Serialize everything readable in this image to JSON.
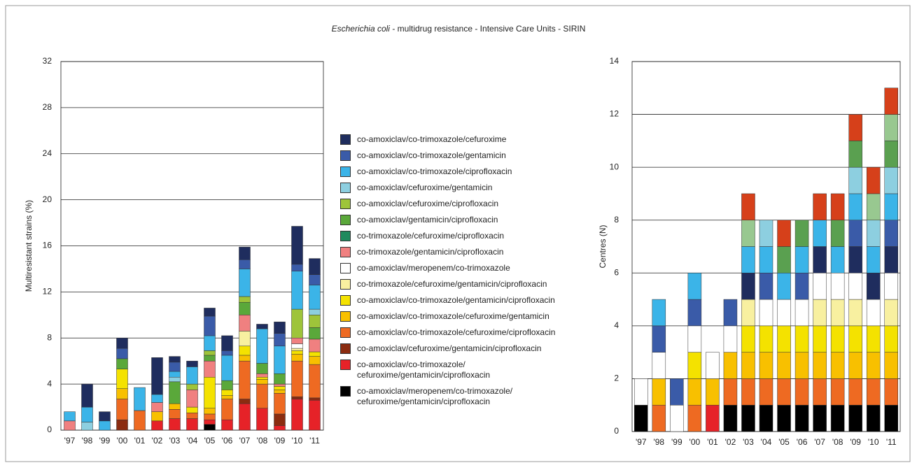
{
  "title": {
    "species": "Escherichia coli",
    "rest": "- multidrug resistance - Intensive Care Units - SIRIN"
  },
  "chart_data": [
    {
      "type": "stacked-bar",
      "y_label": "Multiresistant strains (%)",
      "categories": [
        "'97",
        "'98",
        "'99",
        "'00",
        "'01",
        "'02",
        "'03",
        "'04",
        "'05",
        "'06",
        "'07",
        "'08",
        "'09",
        "'10",
        "'11"
      ],
      "ylim": [
        0,
        32
      ],
      "yticks": [
        0,
        4,
        8,
        12,
        16,
        20,
        24,
        28,
        32
      ],
      "grid": true,
      "series": [
        {
          "name": "co-amoxiclav/meropenem/co-trimoxazole/\ncefuroxime/gentamicin/ciprofloxacin",
          "color": "#000000",
          "values": [
            0,
            0,
            0,
            0,
            0,
            0,
            0,
            0,
            0.5,
            0,
            0,
            0,
            0,
            0,
            0
          ]
        },
        {
          "name": "co-amoxiclav/co-trimoxazole/\ncefuroxime/gentamicin/ciprofloxacin",
          "color": "#e62228",
          "values": [
            0,
            0,
            0,
            0,
            0,
            0.8,
            1.0,
            1.0,
            0.4,
            0.9,
            2.3,
            1.9,
            0.4,
            2.7,
            2.6
          ]
        },
        {
          "name": "co-amoxiclav/cefuroxime/gentamicin/ciprofloxacin",
          "color": "#8b2c10",
          "values": [
            0,
            0,
            0,
            0.9,
            0,
            0,
            0,
            0,
            0,
            0,
            0.4,
            0,
            1.0,
            0.2,
            0.2
          ]
        },
        {
          "name": "co-amoxiclav/co-trimoxazole/cefuroxime/ciprofloxacin",
          "color": "#ee6a22",
          "values": [
            0,
            0,
            0,
            1.8,
            1.7,
            0,
            0.8,
            0.5,
            0.5,
            1.8,
            3.3,
            2.1,
            1.8,
            3.1,
            2.9
          ]
        },
        {
          "name": "co-amoxiclav/co-trimoxazole/cefuroxime/gentamicin",
          "color": "#f8c000",
          "values": [
            0,
            0,
            0,
            0.9,
            0,
            0.8,
            0.5,
            0,
            0.5,
            0.3,
            0.5,
            0.4,
            0.3,
            0.6,
            0.7
          ]
        },
        {
          "name": "co-amoxiclav/co-trimoxazole/gentamicin/ciprofloxacin",
          "color": "#f4e200",
          "values": [
            0,
            0,
            0,
            1.7,
            0,
            0,
            0,
            0.5,
            2.7,
            0.5,
            0.8,
            0.2,
            0.3,
            0.3,
            0.4
          ]
        },
        {
          "name": "co-trimoxazole/cefuroxime/gentamicin/ciprofloxacin",
          "color": "#f8f0a0",
          "values": [
            0,
            0,
            0,
            0,
            0,
            0,
            0,
            0,
            0,
            0,
            1.3,
            0,
            0,
            0.2,
            0
          ]
        },
        {
          "name": "co-amoxiclav/meropenem/co-trimoxazole",
          "color": "#ffffff",
          "values": [
            0,
            0,
            0,
            0,
            0,
            0,
            0,
            0,
            0,
            0,
            0,
            0,
            0,
            0.4,
            0
          ]
        },
        {
          "name": "co-trimoxazole/gentamicin/ciprofloxacin",
          "color": "#f08080",
          "values": [
            0.8,
            0,
            0,
            0,
            0,
            0.8,
            0,
            1.5,
            1.4,
            0,
            1.4,
            0.3,
            0.2,
            0.5,
            1.1
          ]
        },
        {
          "name": "co-trimoxazole/cefuroxime/ciprofloxacin",
          "color": "#1f8a5e",
          "values": [
            0,
            0,
            0,
            0,
            0,
            0,
            0,
            0,
            0,
            0,
            0,
            0,
            0,
            0,
            0
          ]
        },
        {
          "name": "co-amoxiclav/gentamicin/ciprofloxacin",
          "color": "#5aa83a",
          "values": [
            0,
            0,
            0,
            0.9,
            0,
            0,
            1.9,
            0,
            0.5,
            0.8,
            1.1,
            0.9,
            0.9,
            0,
            1.0
          ]
        },
        {
          "name": "co-amoxiclav/cefuroxime/ciprofloxacin",
          "color": "#9ec43a",
          "values": [
            0,
            0,
            0,
            0,
            0,
            0,
            0,
            0.5,
            0.4,
            0,
            0.5,
            0,
            0,
            2.5,
            1.1
          ]
        },
        {
          "name": "co-amoxiclav/cefuroxime/gentamicin",
          "color": "#8dcfe0",
          "values": [
            0,
            0.7,
            0,
            0,
            0,
            0,
            0.4,
            0,
            0,
            0,
            0,
            0,
            0,
            0,
            0.5
          ]
        },
        {
          "name": "co-amoxiclav/co-trimoxazole/ciprofloxacin",
          "color": "#3bb4e8",
          "values": [
            0.8,
            1.3,
            0.8,
            0,
            2.0,
            0.7,
            0.5,
            1.5,
            1.3,
            2.2,
            2.4,
            3.0,
            2.4,
            3.3,
            2.1
          ]
        },
        {
          "name": "co-amoxiclav/co-trimoxazole/gentamicin",
          "color": "#3a5ba8",
          "values": [
            0,
            0,
            0,
            0.9,
            0,
            0,
            0.8,
            0,
            1.7,
            0.4,
            0.8,
            0,
            1.1,
            0.6,
            0.9
          ]
        },
        {
          "name": "co-amoxiclav/co-trimoxazole/cefuroxime",
          "color": "#1f2d5e",
          "values": [
            0,
            2.0,
            0.8,
            0.9,
            0,
            3.2,
            0.5,
            0.5,
            0.7,
            1.3,
            1.1,
            0.4,
            1.0,
            3.3,
            1.4
          ]
        }
      ]
    },
    {
      "type": "stacked-bar",
      "y_label": "Centres (N)",
      "categories": [
        "'97",
        "'98",
        "'99",
        "'00",
        "'01",
        "'02",
        "'03",
        "'04",
        "'05",
        "'06",
        "'07",
        "'08",
        "'09",
        "'10",
        "'11"
      ],
      "ylim": [
        0,
        14
      ],
      "yticks": [
        0,
        2,
        4,
        6,
        8,
        10,
        12,
        14
      ],
      "grid": true,
      "series": [
        {
          "color": "#000000",
          "values": [
            1,
            0,
            0,
            0,
            0,
            1,
            1,
            1,
            1,
            1,
            1,
            1,
            1,
            1,
            1
          ]
        },
        {
          "color": "#e62228",
          "values": [
            0,
            0,
            0,
            0,
            1,
            0,
            0,
            0,
            0,
            0,
            0,
            0,
            0,
            0,
            0
          ]
        },
        {
          "color": "#ee6a22",
          "values": [
            0,
            1,
            0,
            1,
            0,
            1,
            1,
            1,
            1,
            1,
            1,
            1,
            1,
            1,
            1
          ]
        },
        {
          "color": "#f8c000",
          "values": [
            0,
            1,
            0,
            1,
            1,
            1,
            1,
            1,
            1,
            1,
            1,
            1,
            1,
            1,
            1
          ]
        },
        {
          "color": "#f4e200",
          "values": [
            0,
            0,
            0,
            1,
            0,
            0,
            1,
            1,
            1,
            1,
            1,
            1,
            1,
            1,
            1
          ]
        },
        {
          "color": "#f8f0a0",
          "values": [
            0,
            0,
            0,
            0,
            0,
            0,
            1,
            0,
            0,
            0,
            1,
            1,
            1,
            0,
            1
          ]
        },
        {
          "color": "#ffffff",
          "values": [
            1,
            1,
            1,
            1,
            1,
            1,
            0,
            1,
            1,
            1,
            1,
            1,
            1,
            1,
            1
          ]
        },
        {
          "color": "#1f2d5e",
          "values": [
            0,
            0,
            0,
            0,
            0,
            0,
            1,
            0,
            0,
            0,
            1,
            0,
            1,
            1,
            1
          ]
        },
        {
          "color": "#3a5ba8",
          "values": [
            0,
            1,
            1,
            1,
            0,
            1,
            0,
            1,
            0,
            1,
            0,
            0,
            1,
            0,
            1
          ]
        },
        {
          "color": "#3bb4e8",
          "values": [
            0,
            1,
            0,
            1,
            0,
            0,
            1,
            1,
            1,
            1,
            1,
            1,
            1,
            1,
            1
          ]
        },
        {
          "color": "#8dcfe0",
          "values": [
            0,
            0,
            0,
            0,
            0,
            0,
            0,
            1,
            0,
            0,
            0,
            0,
            1,
            1,
            1
          ]
        },
        {
          "color": "#5aa050",
          "values": [
            0,
            0,
            0,
            0,
            0,
            0,
            0,
            0,
            1,
            1,
            0,
            1,
            1,
            0,
            1
          ]
        },
        {
          "color": "#98c890",
          "values": [
            0,
            0,
            0,
            0,
            0,
            0,
            1,
            0,
            0,
            0,
            0,
            0,
            0,
            1,
            1
          ]
        },
        {
          "color": "#d6401a",
          "values": [
            0,
            0,
            0,
            0,
            0,
            0,
            1,
            0,
            1,
            0,
            1,
            1,
            1,
            1,
            1
          ]
        }
      ]
    }
  ]
}
